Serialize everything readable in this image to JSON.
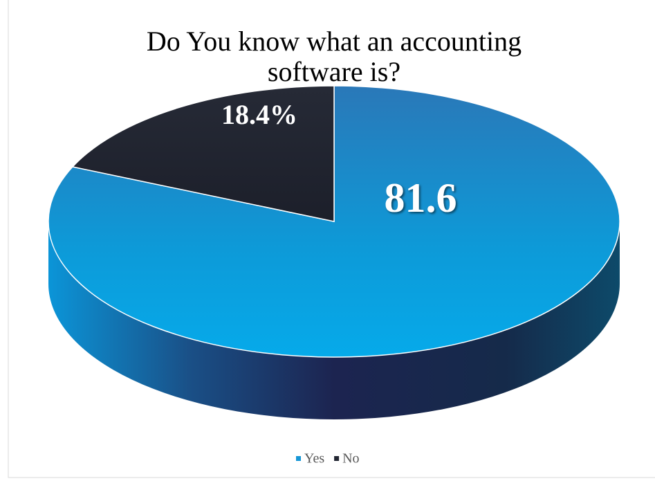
{
  "chart_data": {
    "type": "pie",
    "title": "Do You know what an accounting software is?",
    "categories": [
      "Yes",
      "No"
    ],
    "values": [
      81.6,
      18.4
    ],
    "value_labels": [
      "81.6",
      "18.4%"
    ],
    "colors": [
      "#1696d6",
      "#222632"
    ],
    "legend": "bottom"
  }
}
